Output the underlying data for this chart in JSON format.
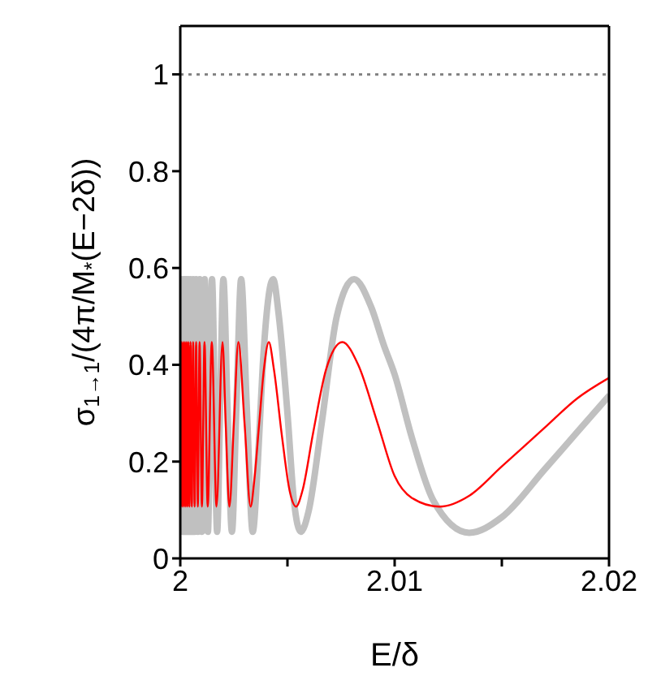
{
  "chart_data": {
    "type": "line",
    "xlabel": "E/δ",
    "ylabel": "σ$_{1→1}$/(4π/M$_{*}$(E−2δ))",
    "xlim": [
      2,
      2.02
    ],
    "xticks": [
      2,
      {
        "value": 2.005,
        "label": null
      },
      2.01,
      {
        "value": 2.015,
        "label": null
      },
      2.02
    ],
    "ylim": [
      0,
      1.1
    ],
    "yticks": [
      0,
      0.2,
      0.4,
      0.6,
      0.8,
      1
    ],
    "marker": "none",
    "line_style": "solid",
    "ref_lines": [
      {
        "axis": "y",
        "value": 1,
        "color": "#808080",
        "line_style": "dotted"
      }
    ],
    "series": [
      {
        "color": "#c0c0c0",
        "x": [
          2.00003,
          2.00006,
          2.0001,
          2.00014,
          2.00018,
          2.00022,
          2.00026,
          2.0003,
          2.00034,
          2.00038,
          2.00043,
          2.00048,
          2.00054,
          2.0006,
          2.00067,
          2.00074,
          2.00082,
          2.00091,
          2.00101,
          2.00114,
          2.00129,
          2.00148,
          2.00172,
          2.00186,
          2.00201,
          2.0022,
          2.00241,
          2.00262,
          2.00284,
          2.0031,
          2.00338,
          2.00362,
          2.00385,
          2.00433,
          2.0046,
          2.005,
          2.0053,
          2.00562,
          2.006,
          2.0066,
          2.0073,
          2.00811,
          2.0089,
          2.0095,
          2.01,
          2.0108,
          2.0118,
          2.01348,
          2.015,
          2.017,
          2.0185,
          2.02
        ],
        "values": [
          0.055,
          0.577,
          0.055,
          0.577,
          0.055,
          0.577,
          0.055,
          0.577,
          0.055,
          0.577,
          0.055,
          0.577,
          0.055,
          0.577,
          0.055,
          0.577,
          0.055,
          0.577,
          0.055,
          0.577,
          0.055,
          0.577,
          0.055,
          0.316,
          0.577,
          0.316,
          0.055,
          0.316,
          0.577,
          0.316,
          0.055,
          0.2,
          0.4,
          0.577,
          0.5,
          0.3,
          0.12,
          0.055,
          0.1,
          0.28,
          0.5,
          0.577,
          0.52,
          0.44,
          0.38,
          0.25,
          0.12,
          0.053,
          0.085,
          0.184,
          0.26,
          0.336
        ]
      },
      {
        "color": "#ff0000",
        "x": [
          2.00003,
          2.00006,
          2.0001,
          2.00014,
          2.00018,
          2.00022,
          2.00026,
          2.0003,
          2.00034,
          2.00038,
          2.00043,
          2.00048,
          2.00054,
          2.0006,
          2.00067,
          2.00074,
          2.00082,
          2.0009,
          2.00101,
          2.00113,
          2.00128,
          2.00147,
          2.00169,
          2.00197,
          2.00212,
          2.00229,
          2.0025,
          2.00271,
          2.003,
          2.00328,
          2.00345,
          2.00368,
          2.0039,
          2.00413,
          2.00437,
          2.00475,
          2.0051,
          2.0054,
          2.0057,
          2.0062,
          2.0068,
          2.00756,
          2.0083,
          2.0092,
          2.01,
          2.0108,
          2.01209,
          2.0135,
          2.015,
          2.017,
          2.0185,
          2.02
        ],
        "values": [
          0.107,
          0.447,
          0.107,
          0.447,
          0.107,
          0.447,
          0.107,
          0.447,
          0.107,
          0.447,
          0.107,
          0.447,
          0.107,
          0.447,
          0.107,
          0.447,
          0.107,
          0.447,
          0.107,
          0.447,
          0.107,
          0.447,
          0.107,
          0.447,
          0.278,
          0.107,
          0.278,
          0.447,
          0.278,
          0.107,
          0.16,
          0.278,
          0.39,
          0.447,
          0.39,
          0.25,
          0.14,
          0.107,
          0.14,
          0.26,
          0.39,
          0.447,
          0.4,
          0.28,
          0.17,
          0.125,
          0.107,
          0.13,
          0.19,
          0.27,
          0.33,
          0.373
        ]
      }
    ]
  }
}
